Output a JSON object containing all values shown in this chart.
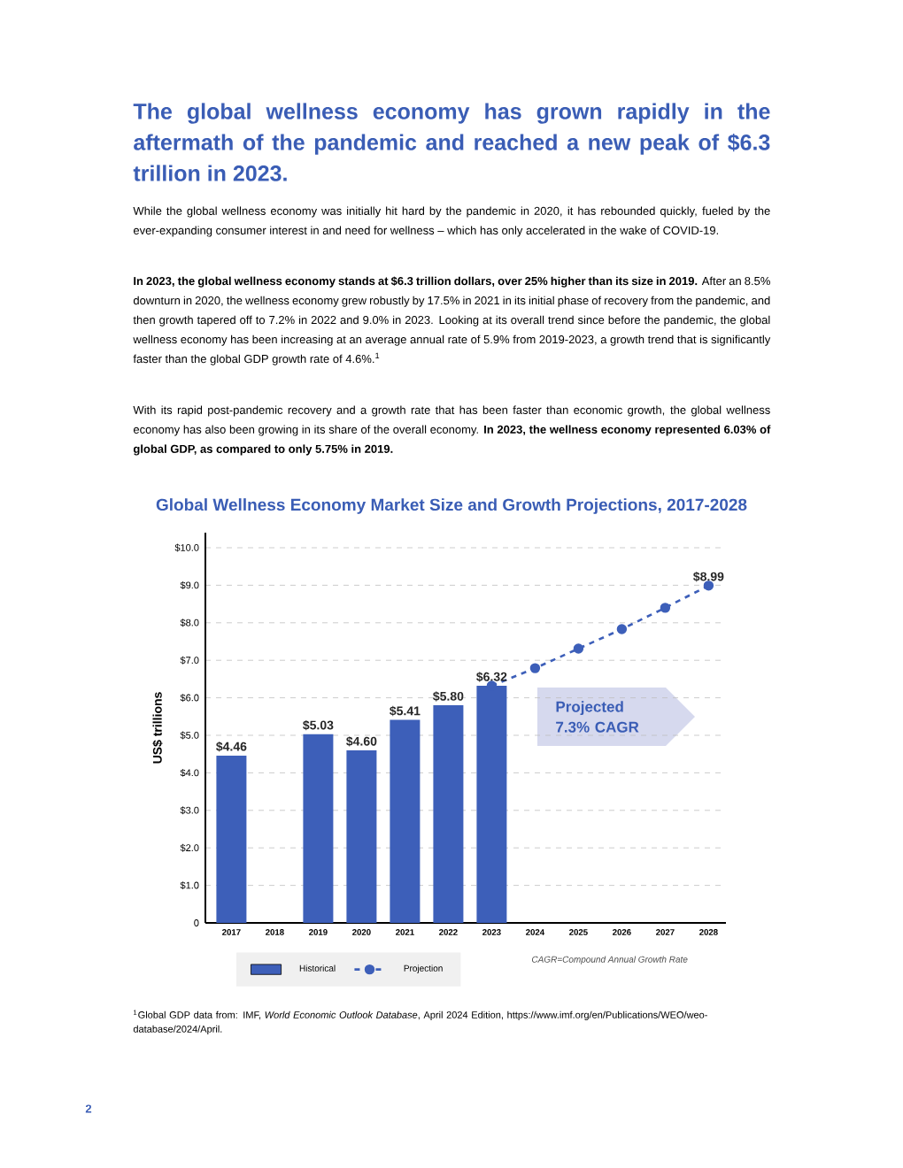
{
  "chart_data": {
    "type": "bar",
    "title": "Global Wellness Economy Market Size and Growth Projections, 2017-2028",
    "ylabel": "US$ trillions",
    "categories": [
      "2017",
      "2018",
      "2019",
      "2020",
      "2021",
      "2022",
      "2023",
      "2024",
      "2025",
      "2026",
      "2027",
      "2028"
    ],
    "series": [
      {
        "name": "Historical",
        "color": "#3d5fb9",
        "values": [
          4.46,
          null,
          5.03,
          4.6,
          5.41,
          5.8,
          6.32,
          null,
          null,
          null,
          null,
          null
        ],
        "value_labels": [
          "$4.46",
          null,
          "$5.03",
          "$4.60",
          "$5.41",
          "$5.80",
          "$6.32",
          null,
          null,
          null,
          null,
          null
        ]
      },
      {
        "name": "Projection",
        "type": "line",
        "color": "#3d5fb9",
        "marker": "circle",
        "line_style": "dashed",
        "values": [
          null,
          null,
          null,
          null,
          null,
          null,
          6.32,
          6.79,
          7.31,
          7.83,
          8.4,
          8.99
        ],
        "value_labels": [
          null,
          null,
          null,
          null,
          null,
          null,
          null,
          null,
          null,
          null,
          null,
          "$8.99"
        ]
      }
    ],
    "ylim": [
      0,
      10.4
    ],
    "yticks": [
      0,
      {
        "value": 1,
        "label": "$1.0"
      },
      {
        "value": 2,
        "label": "$2.0"
      },
      {
        "value": 3,
        "label": "$3.0"
      },
      {
        "value": 4,
        "label": "$4.0"
      },
      {
        "value": 5,
        "label": "$5.0"
      },
      {
        "value": 6,
        "label": "$6.0"
      },
      {
        "value": 7,
        "label": "$7.0"
      },
      {
        "value": 8,
        "label": "$8.0"
      },
      {
        "value": 9,
        "label": "$9.0"
      },
      {
        "value": 10,
        "label": "$10.0"
      }
    ],
    "grid": "y",
    "legend": "bottom",
    "annotations": [
      "The global wellness economy has grown rapidly in the aftermath of the pandemic and reached a new peak of $6.3 trillion in 2023.",
      "While the global wellness economy was initially hit hard by the pandemic in 2020, it has rebounded quickly, fueled by the ever-expanding consumer interest in and need for wellness – which has only accelerated in the wake of COVID-19.",
      "**In 2023, the global wellness economy stands at $6.3 trillion dollars, over 25% higher than its size in 2019.** After an 8.5% downturn in 2020, the wellness economy grew robustly by 17.5% in 2021 in its initial phase of recovery from the pandemic, and then growth tapered off to 7.2% in 2022 and 9.0% in 2023. Looking at its overall trend since before the pandemic, the global wellness economy has been increasing at an average annual rate of 5.9% from 2019-2023, a growth trend that is significantly faster than the global GDP growth rate of 4.6%.$^{1}$",
      "With its rapid post-pandemic recovery and a growth rate that has been faster than economic growth, the global wellness economy has also been growing in its share of the overall economy. **In 2023, the wellness economy represented 6.03% of global GDP, as compared to only 5.75% in 2019.**",
      "Projected 7.3% CAGR",
      "CAGR=Compound Annual Growth Rate",
      "$^{1}$Global GDP data from: IMF, *World Economic Outlook Database*, April 2024 Edition, https://www.imf.org/en/Publications/WEO/weo-database/2024/April.",
      "2"
    ]
  }
}
